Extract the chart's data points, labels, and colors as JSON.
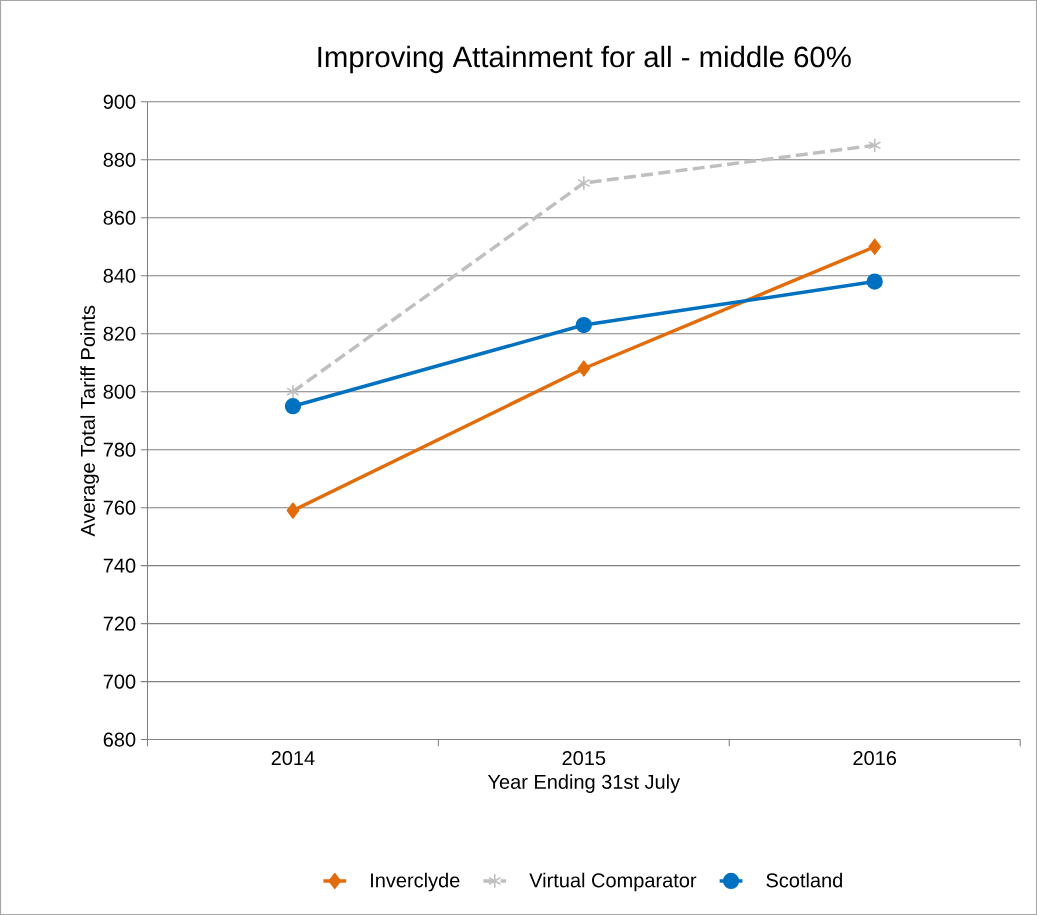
{
  "chart_data": {
    "type": "line",
    "title": "Improving Attainment for all - middle 60%",
    "xlabel": "Year Ending 31st July",
    "ylabel": "Average Total Tariff Points",
    "categories": [
      "2014",
      "2015",
      "2016"
    ],
    "series": [
      {
        "name": "Inverclyde",
        "color": "#e36c0a",
        "values": [
          759,
          808,
          850
        ],
        "marker": "diamond",
        "line_style": "solid"
      },
      {
        "name": "Virtual Comparator",
        "color": "#bfbfbf",
        "values": [
          800,
          872,
          885
        ],
        "marker": "cross",
        "line_style": "dashed"
      },
      {
        "name": "Scotland",
        "color": "#0070c0",
        "values": [
          795,
          823,
          838
        ],
        "marker": "circle",
        "line_style": "solid"
      }
    ],
    "ylim": [
      680,
      900
    ],
    "yticks": [
      680,
      700,
      720,
      740,
      760,
      780,
      800,
      820,
      840,
      860,
      880,
      900
    ],
    "grid": "y",
    "legend": "bottom"
  }
}
